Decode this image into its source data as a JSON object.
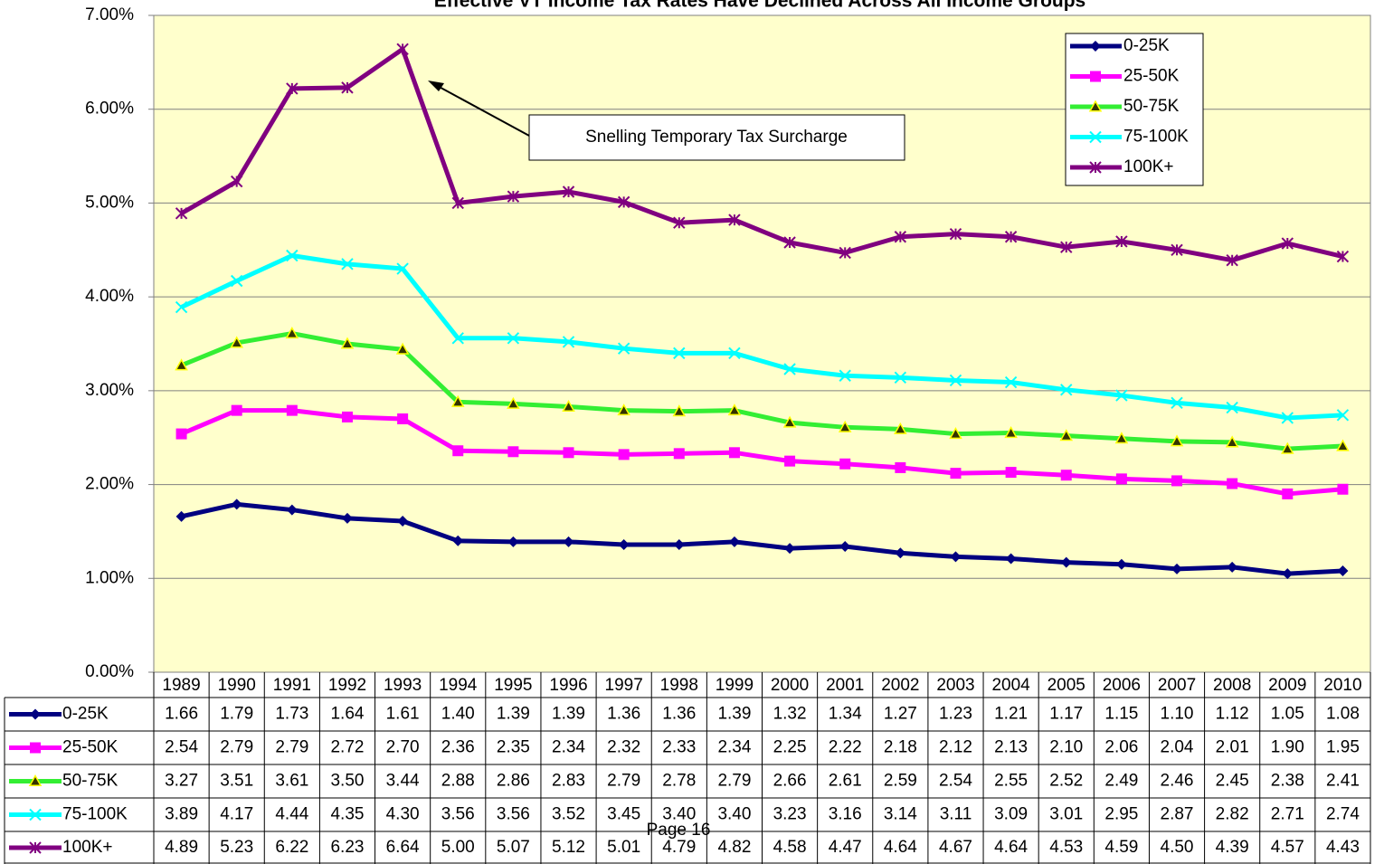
{
  "chart_data": {
    "type": "line",
    "title": "Effective VT Income Tax Rates Have Declined Across All Income Groups",
    "annotation": "Snelling Temporary Tax Surcharge",
    "page_label": "Page 16",
    "categories": [
      "1989",
      "1990",
      "1991",
      "1992",
      "1993",
      "1994",
      "1995",
      "1996",
      "1997",
      "1998",
      "1999",
      "2000",
      "2001",
      "2002",
      "2003",
      "2004",
      "2005",
      "2006",
      "2007",
      "2008",
      "2009",
      "2010"
    ],
    "ylim": [
      0,
      7
    ],
    "yticks": [
      {
        "value": 0,
        "label": "0.00%"
      },
      {
        "value": 1,
        "label": "1.00%"
      },
      {
        "value": 2,
        "label": "2.00%"
      },
      {
        "value": 3,
        "label": "3.00%"
      },
      {
        "value": 4,
        "label": "4.00%"
      },
      {
        "value": 5,
        "label": "5.00%"
      },
      {
        "value": 6,
        "label": "6.00%"
      },
      {
        "value": 7,
        "label": "7.00%"
      }
    ],
    "grid": true,
    "legend": "top-right",
    "series": [
      {
        "name": "0-25K",
        "color": "#000080",
        "marker": "diamond",
        "values": [
          1.66,
          1.79,
          1.73,
          1.64,
          1.61,
          1.4,
          1.39,
          1.39,
          1.36,
          1.36,
          1.39,
          1.32,
          1.34,
          1.27,
          1.23,
          1.21,
          1.17,
          1.15,
          1.1,
          1.12,
          1.05,
          1.08
        ],
        "value_labels": [
          "1.66",
          "1.79",
          "1.73",
          "1.64",
          "1.61",
          "1.40",
          "1.39",
          "1.39",
          "1.36",
          "1.36",
          "1.39",
          "1.32",
          "1.34",
          "1.27",
          "1.23",
          "1.21",
          "1.17",
          "1.15",
          "1.10",
          "1.12",
          "1.05",
          "1.08"
        ]
      },
      {
        "name": "25-50K",
        "color": "#ff00ff",
        "marker": "square",
        "values": [
          2.54,
          2.79,
          2.79,
          2.72,
          2.7,
          2.36,
          2.35,
          2.34,
          2.32,
          2.33,
          2.34,
          2.25,
          2.22,
          2.18,
          2.12,
          2.13,
          2.1,
          2.06,
          2.04,
          2.01,
          1.9,
          1.95
        ],
        "value_labels": [
          "2.54",
          "2.79",
          "2.79",
          "2.72",
          "2.70",
          "2.36",
          "2.35",
          "2.34",
          "2.32",
          "2.33",
          "2.34",
          "2.25",
          "2.22",
          "2.18",
          "2.12",
          "2.13",
          "2.10",
          "2.06",
          "2.04",
          "2.01",
          "1.90",
          "1.95"
        ]
      },
      {
        "name": "50-75K",
        "color": "#33ee33",
        "marker": "triangle",
        "values": [
          3.27,
          3.51,
          3.61,
          3.5,
          3.44,
          2.88,
          2.86,
          2.83,
          2.79,
          2.78,
          2.79,
          2.66,
          2.61,
          2.59,
          2.54,
          2.55,
          2.52,
          2.49,
          2.46,
          2.45,
          2.38,
          2.41
        ],
        "value_labels": [
          "3.27",
          "3.51",
          "3.61",
          "3.50",
          "3.44",
          "2.88",
          "2.86",
          "2.83",
          "2.79",
          "2.78",
          "2.79",
          "2.66",
          "2.61",
          "2.59",
          "2.54",
          "2.55",
          "2.52",
          "2.49",
          "2.46",
          "2.45",
          "2.38",
          "2.41"
        ]
      },
      {
        "name": "75-100K",
        "color": "#00ffff",
        "marker": "x",
        "values": [
          3.89,
          4.17,
          4.44,
          4.35,
          4.3,
          3.56,
          3.56,
          3.52,
          3.45,
          3.4,
          3.4,
          3.23,
          3.16,
          3.14,
          3.11,
          3.09,
          3.01,
          2.95,
          2.87,
          2.82,
          2.71,
          2.74
        ],
        "value_labels": [
          "3.89",
          "4.17",
          "4.44",
          "4.35",
          "4.30",
          "3.56",
          "3.56",
          "3.52",
          "3.45",
          "3.40",
          "3.40",
          "3.23",
          "3.16",
          "3.14",
          "3.11",
          "3.09",
          "3.01",
          "2.95",
          "2.87",
          "2.82",
          "2.71",
          "2.74"
        ]
      },
      {
        "name": "100K+",
        "color": "#800080",
        "marker": "star",
        "values": [
          4.89,
          5.23,
          6.22,
          6.23,
          6.64,
          5.0,
          5.07,
          5.12,
          5.01,
          4.79,
          4.82,
          4.58,
          4.47,
          4.64,
          4.67,
          4.64,
          4.53,
          4.59,
          4.5,
          4.39,
          4.57,
          4.43
        ],
        "value_labels": [
          "4.89",
          "5.23",
          "6.22",
          "6.23",
          "6.64",
          "5.00",
          "5.07",
          "5.12",
          "5.01",
          "4.79",
          "4.82",
          "4.58",
          "4.47",
          "4.64",
          "4.67",
          "4.64",
          "4.53",
          "4.59",
          "4.50",
          "4.39",
          "4.57",
          "4.43"
        ]
      }
    ]
  }
}
